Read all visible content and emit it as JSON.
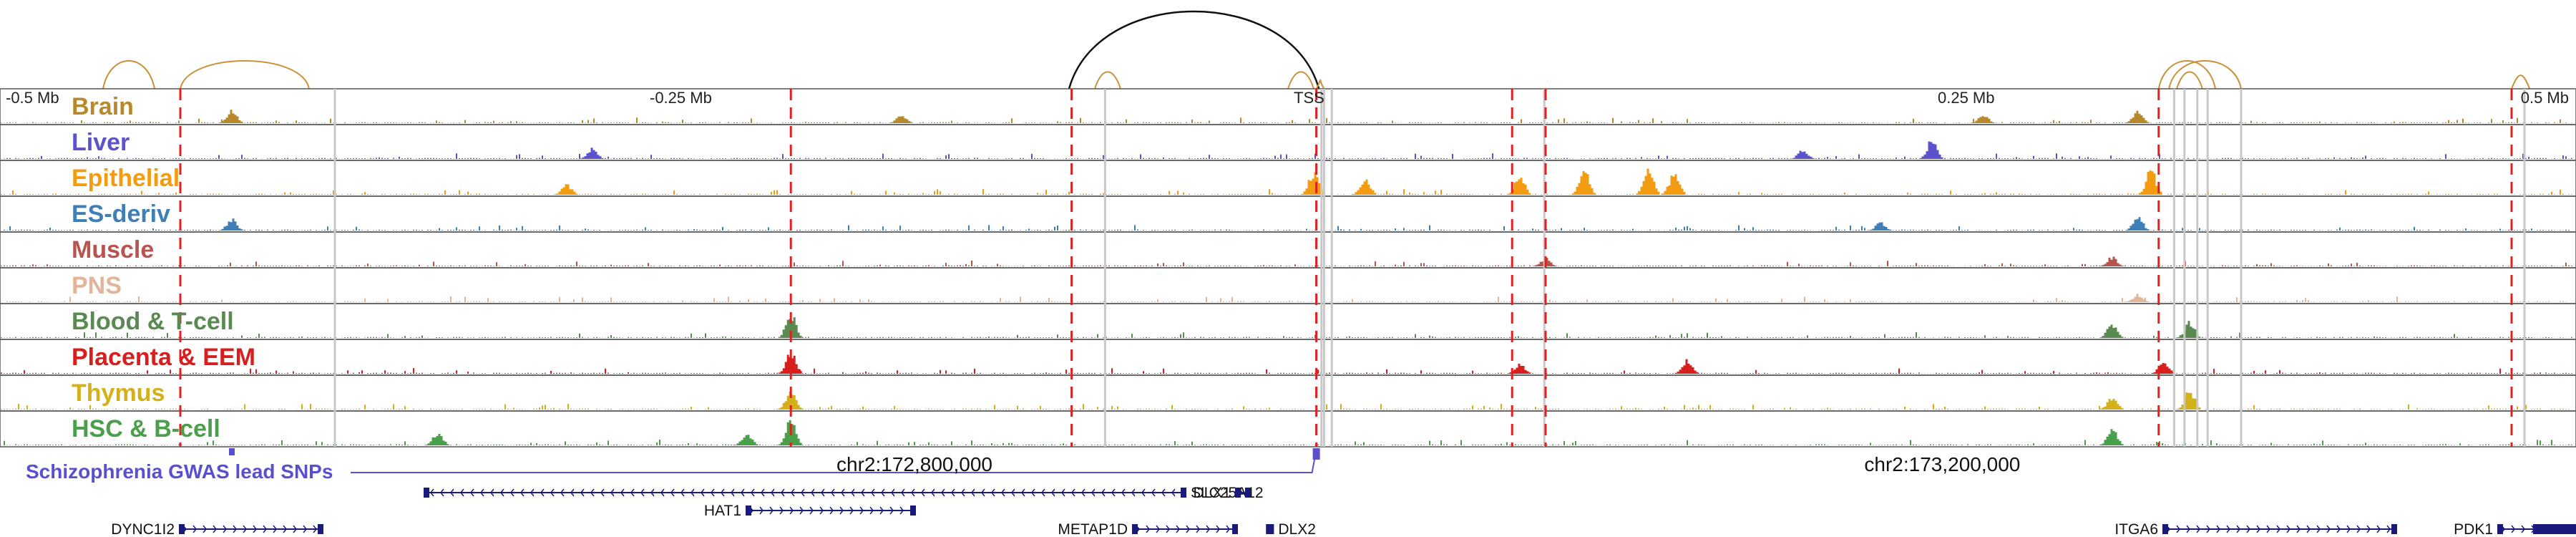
{
  "window": {
    "start_mb": -0.5,
    "end_mb": 0.5
  },
  "axis": {
    "ticks": [
      {
        "pos": -0.5,
        "label": "-0.5 Mb"
      },
      {
        "pos": -0.25,
        "label": "-0.25 Mb"
      },
      {
        "pos": 0.0,
        "label": "TSS"
      },
      {
        "pos": 0.25,
        "label": "0.25 Mb"
      },
      {
        "pos": 0.5,
        "label": "0.5 Mb"
      }
    ]
  },
  "tracks": [
    {
      "name": "Brain",
      "color": "#b8892a"
    },
    {
      "name": "Liver",
      "color": "#5b52cc"
    },
    {
      "name": "Epithelial",
      "color": "#f39c12"
    },
    {
      "name": "ES-deriv",
      "color": "#3e7fb8"
    },
    {
      "name": "Muscle",
      "color": "#b85450"
    },
    {
      "name": "PNS",
      "color": "#e3b49a"
    },
    {
      "name": "Blood & T-cell",
      "color": "#5a8a52"
    },
    {
      "name": "Placenta & EEM",
      "color": "#d91e1e"
    },
    {
      "name": "Thymus",
      "color": "#d4b11a"
    },
    {
      "name": "HSC & B-cell",
      "color": "#4aa04a"
    }
  ],
  "peaks": [
    {
      "track": "Brain",
      "pos": -0.41,
      "h": 0.5
    },
    {
      "track": "Brain",
      "pos": -0.15,
      "h": 0.35
    },
    {
      "track": "Brain",
      "pos": 0.27,
      "h": 0.3
    },
    {
      "track": "Brain",
      "pos": 0.33,
      "h": 0.45
    },
    {
      "track": "Liver",
      "pos": 0.2,
      "h": 0.35
    },
    {
      "track": "Liver",
      "pos": 0.25,
      "h": 0.7
    },
    {
      "track": "Liver",
      "pos": -0.27,
      "h": 0.4
    },
    {
      "track": "Epithelial",
      "pos": 0.09,
      "h": 0.75
    },
    {
      "track": "Epithelial",
      "pos": 0.115,
      "h": 0.95
    },
    {
      "track": "Epithelial",
      "pos": 0.14,
      "h": 0.9
    },
    {
      "track": "Epithelial",
      "pos": 0.15,
      "h": 0.85
    },
    {
      "track": "Epithelial",
      "pos": 0.335,
      "h": 0.95
    },
    {
      "track": "Epithelial",
      "pos": 0.01,
      "h": 0.9
    },
    {
      "track": "Epithelial",
      "pos": 0.03,
      "h": 0.6
    },
    {
      "track": "Epithelial",
      "pos": -0.28,
      "h": 0.4
    },
    {
      "track": "ES-deriv",
      "pos": -0.41,
      "h": 0.45
    },
    {
      "track": "ES-deriv",
      "pos": 0.33,
      "h": 0.5
    },
    {
      "track": "ES-deriv",
      "pos": 0.23,
      "h": 0.3
    },
    {
      "track": "Muscle",
      "pos": 0.32,
      "h": 0.35
    },
    {
      "track": "Muscle",
      "pos": 0.1,
      "h": 0.3
    },
    {
      "track": "PNS",
      "pos": 0.33,
      "h": 0.3
    },
    {
      "track": "Blood & T-cell",
      "pos": -0.193,
      "h": 0.95
    },
    {
      "track": "Blood & T-cell",
      "pos": 0.32,
      "h": 0.55
    },
    {
      "track": "Blood & T-cell",
      "pos": 0.35,
      "h": 0.6
    },
    {
      "track": "Placenta & EEM",
      "pos": -0.193,
      "h": 0.8
    },
    {
      "track": "Placenta & EEM",
      "pos": 0.09,
      "h": 0.4
    },
    {
      "track": "Placenta & EEM",
      "pos": 0.155,
      "h": 0.5
    },
    {
      "track": "Placenta & EEM",
      "pos": 0.34,
      "h": 0.5
    },
    {
      "track": "Thymus",
      "pos": -0.193,
      "h": 0.7
    },
    {
      "track": "Thymus",
      "pos": 0.32,
      "h": 0.5
    },
    {
      "track": "Thymus",
      "pos": 0.35,
      "h": 0.75
    },
    {
      "track": "HSC & B-cell",
      "pos": -0.193,
      "h": 0.95
    },
    {
      "track": "HSC & B-cell",
      "pos": -0.33,
      "h": 0.5
    },
    {
      "track": "HSC & B-cell",
      "pos": -0.21,
      "h": 0.45
    },
    {
      "track": "HSC & B-cell",
      "pos": 0.32,
      "h": 0.6
    }
  ],
  "red_lines": [
    -0.43,
    -0.193,
    -0.084,
    0.087,
    0.1,
    0.011,
    0.338,
    0.475
  ],
  "gray_lines": [
    -0.37,
    -0.071,
    0.0995,
    0.013,
    0.014,
    0.017,
    0.344,
    0.348,
    0.353,
    0.357,
    0.37,
    0.48
  ],
  "big_loop": {
    "start": -0.085,
    "end": 0.012
  },
  "small_loops": [
    {
      "start": -0.46,
      "end": -0.44
    },
    {
      "start": -0.43,
      "end": -0.38
    },
    {
      "start": -0.075,
      "end": -0.065
    },
    {
      "start": 0.0,
      "end": 0.01
    },
    {
      "start": 0.011,
      "end": 0.014
    },
    {
      "start": 0.338,
      "end": 0.36
    },
    {
      "start": 0.342,
      "end": 0.37
    },
    {
      "start": 0.345,
      "end": 0.355
    },
    {
      "start": 0.475,
      "end": 0.482
    }
  ],
  "coords": [
    {
      "pos": -0.145,
      "label": "chr2:172,800,000"
    },
    {
      "pos": 0.254,
      "label": "chr2:173,200,000"
    }
  ],
  "snp": {
    "label": "Schizophrenia GWAS lead SNPs",
    "pos": 0.011
  },
  "genes": [
    {
      "name": "SLC25A12",
      "start": -0.335,
      "end": -0.04,
      "strand": "-",
      "row": 1,
      "label_side": "right"
    },
    {
      "name": "DLX1",
      "start": -0.02,
      "end": -0.015,
      "strand": "+",
      "row": 1,
      "label_side": "left"
    },
    {
      "name": "HAT1",
      "start": -0.21,
      "end": -0.145,
      "strand": "+",
      "row": 2,
      "label_side": "left"
    },
    {
      "name": "DYNC1I2",
      "start": -0.43,
      "end": -0.375,
      "strand": "+",
      "row": 3,
      "label_side": "left"
    },
    {
      "name": "METAP1D",
      "start": -0.06,
      "end": -0.02,
      "strand": "+",
      "row": 3,
      "label_side": "left"
    },
    {
      "name": "DLX2",
      "start": -0.008,
      "end": -0.006,
      "strand": "-",
      "row": 3,
      "label_side": "right"
    },
    {
      "name": "ITGA6",
      "start": 0.34,
      "end": 0.43,
      "strand": "+",
      "row": 3,
      "label_side": "left"
    },
    {
      "name": "PDK1",
      "start": 0.47,
      "end": 0.5,
      "strand": "+",
      "row": 3,
      "label_side": "left"
    }
  ]
}
